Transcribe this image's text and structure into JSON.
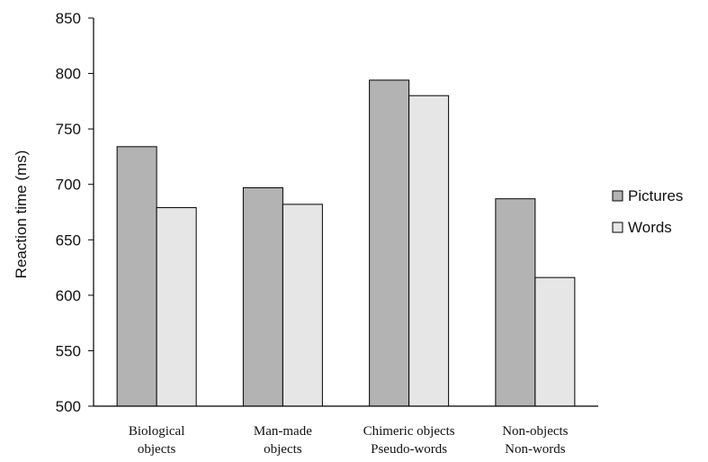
{
  "chart_data": {
    "type": "bar",
    "categories": [
      [
        "Biological",
        "objects"
      ],
      [
        "Man-made",
        "objects"
      ],
      [
        "Chimeric objects",
        "Pseudo-words"
      ],
      [
        "Non-objects",
        "Non-words"
      ]
    ],
    "series": [
      {
        "name": "Pictures",
        "values": [
          734,
          697,
          794,
          687
        ]
      },
      {
        "name": "Words",
        "values": [
          679,
          682,
          780,
          616
        ]
      }
    ],
    "ylabel": "Reaction time (ms)",
    "ylim": [
      500,
      850
    ],
    "yticks": [
      "500",
      "550",
      "600",
      "650",
      "700",
      "750",
      "800",
      "850"
    ],
    "grid": false,
    "legend": "right",
    "colors": {
      "Pictures": "#b3b3b3",
      "Words": "#e6e6e6",
      "axis": "#000000"
    }
  }
}
